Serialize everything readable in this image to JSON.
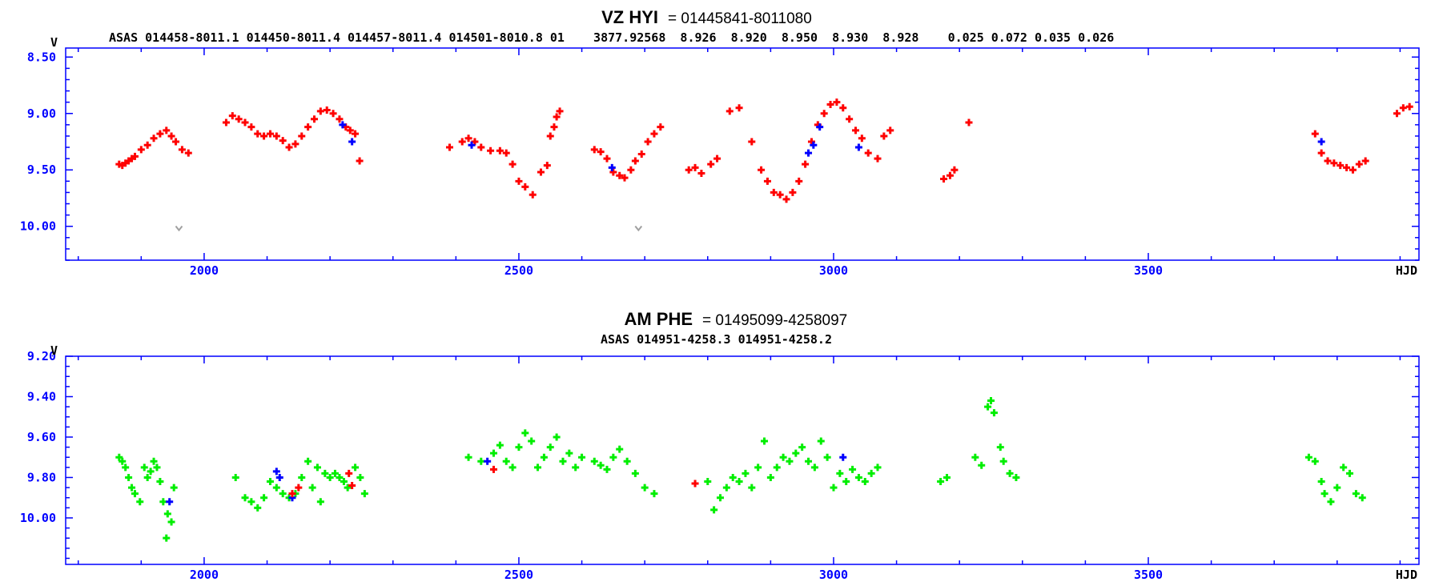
{
  "chart_data": [
    {
      "type": "scatter",
      "title": "VZ HYI",
      "title_id": "= 01445841-8011080",
      "subtitle": "ASAS 014458-8011.1 014450-8011.4 014457-8011.4 014501-8010.8 01    3877.92568  8.926  8.920  8.950  8.930  8.928    0.025 0.072 0.035 0.026",
      "xlabel": "HJD",
      "ylabel": "V",
      "xlim": [
        1780,
        3930
      ],
      "ylim": [
        10.3,
        8.42
      ],
      "y_inverted": true,
      "xticks": [
        2000,
        2500,
        3000,
        3500
      ],
      "xtick_labels": [
        "2000",
        "2500",
        "3000",
        "3500"
      ],
      "yticks": [
        8.5,
        9.0,
        9.5,
        10.0
      ],
      "ytick_labels": [
        "8.50",
        "9.00",
        "9.50",
        "10.00"
      ],
      "grid": false,
      "series": [
        {
          "color": "#ff0000",
          "points": [
            [
              1865,
              9.45
            ],
            [
              1870,
              9.46
            ],
            [
              1875,
              9.44
            ],
            [
              1880,
              9.42
            ],
            [
              1885,
              9.4
            ],
            [
              1890,
              9.38
            ],
            [
              1900,
              9.32
            ],
            [
              1910,
              9.28
            ],
            [
              1920,
              9.22
            ],
            [
              1930,
              9.18
            ],
            [
              1940,
              9.15
            ],
            [
              1948,
              9.2
            ],
            [
              1955,
              9.25
            ],
            [
              1965,
              9.32
            ],
            [
              1975,
              9.35
            ],
            [
              2035,
              9.08
            ],
            [
              2045,
              9.02
            ],
            [
              2055,
              9.05
            ],
            [
              2065,
              9.08
            ],
            [
              2075,
              9.12
            ],
            [
              2085,
              9.18
            ],
            [
              2095,
              9.2
            ],
            [
              2105,
              9.18
            ],
            [
              2115,
              9.2
            ],
            [
              2125,
              9.24
            ],
            [
              2135,
              9.3
            ],
            [
              2145,
              9.27
            ],
            [
              2155,
              9.2
            ],
            [
              2165,
              9.12
            ],
            [
              2175,
              9.05
            ],
            [
              2185,
              8.98
            ],
            [
              2195,
              8.97
            ],
            [
              2205,
              9.0
            ],
            [
              2215,
              9.05
            ],
            [
              2225,
              9.12
            ],
            [
              2232,
              9.15
            ],
            [
              2240,
              9.18
            ],
            [
              2247,
              9.42
            ],
            [
              2390,
              9.3
            ],
            [
              2410,
              9.25
            ],
            [
              2420,
              9.22
            ],
            [
              2430,
              9.25
            ],
            [
              2440,
              9.3
            ],
            [
              2455,
              9.33
            ],
            [
              2470,
              9.33
            ],
            [
              2480,
              9.35
            ],
            [
              2490,
              9.45
            ],
            [
              2500,
              9.6
            ],
            [
              2510,
              9.65
            ],
            [
              2522,
              9.72
            ],
            [
              2535,
              9.52
            ],
            [
              2545,
              9.46
            ],
            [
              2550,
              9.2
            ],
            [
              2556,
              9.12
            ],
            [
              2560,
              9.03
            ],
            [
              2565,
              8.98
            ],
            [
              2620,
              9.32
            ],
            [
              2630,
              9.34
            ],
            [
              2640,
              9.4
            ],
            [
              2650,
              9.52
            ],
            [
              2660,
              9.55
            ],
            [
              2668,
              9.57
            ],
            [
              2678,
              9.5
            ],
            [
              2685,
              9.42
            ],
            [
              2695,
              9.36
            ],
            [
              2705,
              9.25
            ],
            [
              2715,
              9.18
            ],
            [
              2725,
              9.12
            ],
            [
              2770,
              9.5
            ],
            [
              2780,
              9.48
            ],
            [
              2790,
              9.53
            ],
            [
              2805,
              9.45
            ],
            [
              2815,
              9.4
            ],
            [
              2835,
              8.98
            ],
            [
              2850,
              8.95
            ],
            [
              2870,
              9.25
            ],
            [
              2885,
              9.5
            ],
            [
              2895,
              9.6
            ],
            [
              2905,
              9.7
            ],
            [
              2915,
              9.72
            ],
            [
              2925,
              9.76
            ],
            [
              2935,
              9.7
            ],
            [
              2945,
              9.6
            ],
            [
              2955,
              9.45
            ],
            [
              2965,
              9.25
            ],
            [
              2975,
              9.1
            ],
            [
              2985,
              9.0
            ],
            [
              2995,
              8.92
            ],
            [
              3005,
              8.9
            ],
            [
              3015,
              8.95
            ],
            [
              3025,
              9.05
            ],
            [
              3035,
              9.15
            ],
            [
              3045,
              9.22
            ],
            [
              3055,
              9.35
            ],
            [
              3070,
              9.4
            ],
            [
              3080,
              9.2
            ],
            [
              3090,
              9.15
            ],
            [
              3175,
              9.58
            ],
            [
              3185,
              9.55
            ],
            [
              3192,
              9.5
            ],
            [
              3215,
              9.08
            ],
            [
              3765,
              9.18
            ],
            [
              3775,
              9.35
            ],
            [
              3785,
              9.42
            ],
            [
              3795,
              9.44
            ],
            [
              3805,
              9.46
            ],
            [
              3815,
              9.48
            ],
            [
              3825,
              9.5
            ],
            [
              3835,
              9.45
            ],
            [
              3845,
              9.42
            ],
            [
              3895,
              9.0
            ],
            [
              3905,
              8.95
            ],
            [
              3915,
              8.94
            ]
          ]
        },
        {
          "color": "#0000ff",
          "points": [
            [
              2220,
              9.1
            ],
            [
              2235,
              9.25
            ],
            [
              2425,
              9.28
            ],
            [
              2648,
              9.48
            ],
            [
              2960,
              9.35
            ],
            [
              2968,
              9.28
            ],
            [
              2978,
              9.12
            ],
            [
              3040,
              9.3
            ],
            [
              3775,
              9.25
            ]
          ]
        },
        {
          "color": "#a0a0a0",
          "marker": "v",
          "points": [
            [
              1960,
              10.02
            ],
            [
              2690,
              10.02
            ]
          ]
        }
      ]
    },
    {
      "type": "scatter",
      "title": "AM PHE",
      "title_id": "= 01495099-4258097",
      "subtitle": "ASAS 014951-4258.3 014951-4258.2",
      "xlabel": "HJD",
      "ylabel": "V",
      "xlim": [
        1780,
        3930
      ],
      "ylim": [
        10.23,
        9.2
      ],
      "y_inverted": true,
      "xticks": [
        2000,
        2500,
        3000,
        3500
      ],
      "xtick_labels": [
        "2000",
        "2500",
        "3000",
        "3500"
      ],
      "yticks": [
        9.2,
        9.4,
        9.6,
        9.8,
        10.0
      ],
      "ytick_labels": [
        "9.20",
        "9.40",
        "9.60",
        "9.80",
        "10.00"
      ],
      "grid": false,
      "series": [
        {
          "color": "#00ee00",
          "points": [
            [
              1865,
              9.7
            ],
            [
              1870,
              9.72
            ],
            [
              1875,
              9.75
            ],
            [
              1880,
              9.8
            ],
            [
              1885,
              9.85
            ],
            [
              1890,
              9.88
            ],
            [
              1898,
              9.92
            ],
            [
              1905,
              9.75
            ],
            [
              1910,
              9.8
            ],
            [
              1915,
              9.77
            ],
            [
              1920,
              9.72
            ],
            [
              1925,
              9.75
            ],
            [
              1930,
              9.82
            ],
            [
              1935,
              9.92
            ],
            [
              1942,
              9.98
            ],
            [
              1948,
              10.02
            ],
            [
              1952,
              9.85
            ],
            [
              1940,
              10.1
            ],
            [
              2050,
              9.8
            ],
            [
              2065,
              9.9
            ],
            [
              2075,
              9.92
            ],
            [
              2085,
              9.95
            ],
            [
              2095,
              9.9
            ],
            [
              2105,
              9.82
            ],
            [
              2115,
              9.85
            ],
            [
              2125,
              9.88
            ],
            [
              2135,
              9.9
            ],
            [
              2145,
              9.88
            ],
            [
              2155,
              9.8
            ],
            [
              2165,
              9.72
            ],
            [
              2172,
              9.85
            ],
            [
              2180,
              9.75
            ],
            [
              2185,
              9.92
            ],
            [
              2192,
              9.78
            ],
            [
              2200,
              9.8
            ],
            [
              2208,
              9.78
            ],
            [
              2215,
              9.8
            ],
            [
              2222,
              9.82
            ],
            [
              2228,
              9.85
            ],
            [
              2240,
              9.75
            ],
            [
              2248,
              9.8
            ],
            [
              2255,
              9.88
            ],
            [
              2420,
              9.7
            ],
            [
              2440,
              9.72
            ],
            [
              2460,
              9.68
            ],
            [
              2470,
              9.64
            ],
            [
              2480,
              9.72
            ],
            [
              2490,
              9.75
            ],
            [
              2500,
              9.65
            ],
            [
              2510,
              9.58
            ],
            [
              2520,
              9.62
            ],
            [
              2530,
              9.75
            ],
            [
              2540,
              9.7
            ],
            [
              2550,
              9.65
            ],
            [
              2560,
              9.6
            ],
            [
              2570,
              9.72
            ],
            [
              2580,
              9.68
            ],
            [
              2590,
              9.75
            ],
            [
              2600,
              9.7
            ],
            [
              2620,
              9.72
            ],
            [
              2630,
              9.74
            ],
            [
              2640,
              9.76
            ],
            [
              2650,
              9.7
            ],
            [
              2660,
              9.66
            ],
            [
              2672,
              9.72
            ],
            [
              2685,
              9.78
            ],
            [
              2700,
              9.85
            ],
            [
              2715,
              9.88
            ],
            [
              2800,
              9.82
            ],
            [
              2810,
              9.96
            ],
            [
              2820,
              9.9
            ],
            [
              2830,
              9.85
            ],
            [
              2840,
              9.8
            ],
            [
              2850,
              9.82
            ],
            [
              2860,
              9.78
            ],
            [
              2870,
              9.85
            ],
            [
              2880,
              9.75
            ],
            [
              2890,
              9.62
            ],
            [
              2900,
              9.8
            ],
            [
              2910,
              9.75
            ],
            [
              2920,
              9.7
            ],
            [
              2930,
              9.72
            ],
            [
              2940,
              9.68
            ],
            [
              2950,
              9.65
            ],
            [
              2960,
              9.72
            ],
            [
              2970,
              9.75
            ],
            [
              2980,
              9.62
            ],
            [
              2990,
              9.7
            ],
            [
              3000,
              9.85
            ],
            [
              3010,
              9.78
            ],
            [
              3020,
              9.82
            ],
            [
              3030,
              9.76
            ],
            [
              3040,
              9.8
            ],
            [
              3050,
              9.82
            ],
            [
              3060,
              9.78
            ],
            [
              3070,
              9.75
            ],
            [
              3170,
              9.82
            ],
            [
              3180,
              9.8
            ],
            [
              3225,
              9.7
            ],
            [
              3235,
              9.74
            ],
            [
              3245,
              9.45
            ],
            [
              3250,
              9.42
            ],
            [
              3255,
              9.48
            ],
            [
              3265,
              9.65
            ],
            [
              3270,
              9.72
            ],
            [
              3280,
              9.78
            ],
            [
              3290,
              9.8
            ],
            [
              3755,
              9.7
            ],
            [
              3765,
              9.72
            ],
            [
              3775,
              9.82
            ],
            [
              3780,
              9.88
            ],
            [
              3790,
              9.92
            ],
            [
              3800,
              9.85
            ],
            [
              3810,
              9.75
            ],
            [
              3820,
              9.78
            ],
            [
              3830,
              9.88
            ],
            [
              3840,
              9.9
            ]
          ]
        },
        {
          "color": "#0000ff",
          "points": [
            [
              1945,
              9.92
            ],
            [
              2115,
              9.77
            ],
            [
              2120,
              9.8
            ],
            [
              2140,
              9.9
            ],
            [
              2450,
              9.72
            ],
            [
              3015,
              9.7
            ]
          ]
        },
        {
          "color": "#ff0000",
          "points": [
            [
              2140,
              9.88
            ],
            [
              2150,
              9.85
            ],
            [
              2230,
              9.78
            ],
            [
              2235,
              9.84
            ],
            [
              2460,
              9.76
            ],
            [
              2780,
              9.83
            ]
          ]
        }
      ]
    }
  ]
}
